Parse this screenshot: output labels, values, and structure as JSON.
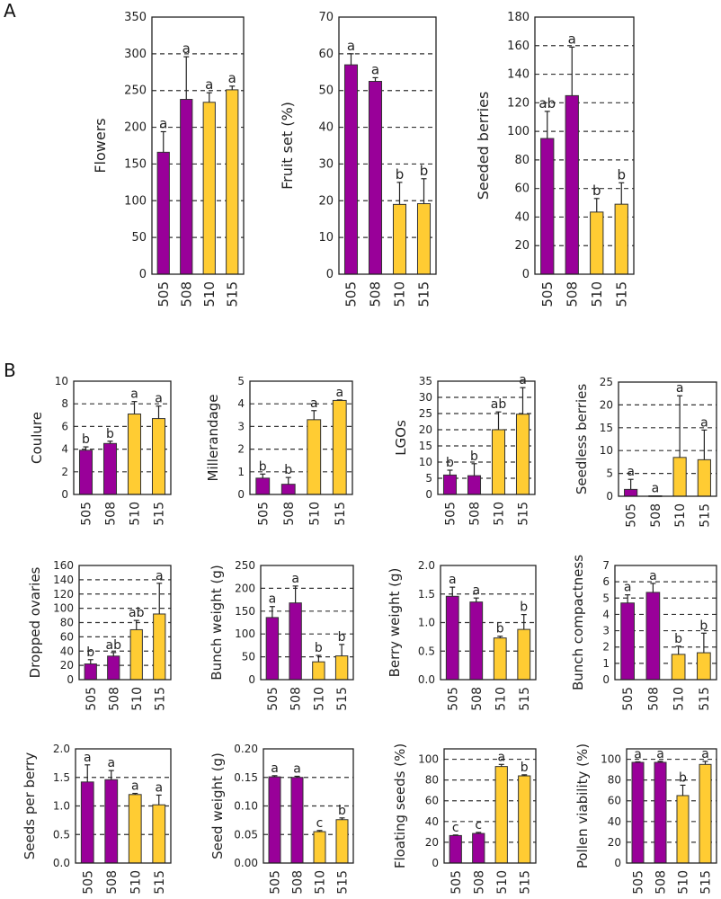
{
  "figure": {
    "panel_labels": [
      "A",
      "B"
    ],
    "colors": {
      "group_purple": "#990099",
      "group_yellow": "#FFCC33",
      "outline": "#333333",
      "grid": "#333333"
    }
  },
  "chart_data": [
    {
      "id": "flowers",
      "panel": "A",
      "type": "bar",
      "ylabel": "Flowers",
      "categories": [
        "505",
        "508",
        "510",
        "515"
      ],
      "values": [
        166,
        238,
        234,
        251
      ],
      "error_upper": [
        194,
        296,
        247,
        256
      ],
      "letters": [
        "a",
        "a",
        "a",
        "a"
      ],
      "ylim": [
        0,
        350
      ],
      "yticks": [
        "0",
        "50",
        "100",
        "150",
        "200",
        "250",
        "300",
        "350"
      ],
      "tick_values": [
        0,
        50,
        100,
        150,
        200,
        250,
        300,
        350
      ],
      "grid_values": [
        50,
        100,
        150,
        200,
        250,
        300
      ],
      "grid": "dashed horizontal",
      "bar_colors": [
        "purple",
        "purple",
        "yellow",
        "yellow"
      ]
    },
    {
      "id": "fruit-set",
      "panel": "A",
      "type": "bar",
      "ylabel": "Fruit set  (%)",
      "categories": [
        "505",
        "508",
        "510",
        "515"
      ],
      "values": [
        57,
        52.5,
        19,
        19.2
      ],
      "error_upper": [
        60,
        53.5,
        25,
        26
      ],
      "letters": [
        "a",
        "a",
        "b",
        "b"
      ],
      "ylim": [
        0,
        70
      ],
      "yticks": [
        "0",
        "10",
        "20",
        "30",
        "40",
        "50",
        "60",
        "70"
      ],
      "tick_values": [
        0,
        10,
        20,
        30,
        40,
        50,
        60,
        70
      ],
      "grid_values": [
        10,
        20,
        30,
        40,
        50,
        60
      ],
      "grid": "dashed horizontal",
      "bar_colors": [
        "purple",
        "purple",
        "yellow",
        "yellow"
      ]
    },
    {
      "id": "seeded-berries",
      "panel": "A",
      "type": "bar",
      "ylabel": "Seeded berries",
      "categories": [
        "505",
        "508",
        "510",
        "515"
      ],
      "values": [
        95,
        125,
        43.5,
        49
      ],
      "error_upper": [
        114,
        159,
        53,
        64
      ],
      "letters": [
        "ab",
        "a",
        "b",
        "b"
      ],
      "ylim": [
        0,
        180
      ],
      "yticks": [
        "0",
        "20",
        "40",
        "60",
        "80",
        "100",
        "120",
        "140",
        "160",
        "180"
      ],
      "tick_values": [
        0,
        20,
        40,
        60,
        80,
        100,
        120,
        140,
        160,
        180
      ],
      "grid_values": [
        20,
        40,
        60,
        80,
        100,
        120,
        140,
        160
      ],
      "grid": "dashed horizontal",
      "bar_colors": [
        "purple",
        "purple",
        "yellow",
        "yellow"
      ]
    },
    {
      "id": "coulure",
      "panel": "B",
      "type": "bar",
      "ylabel": "Coulure",
      "categories": [
        "505",
        "508",
        "510",
        "515"
      ],
      "values": [
        3.9,
        4.5,
        7.1,
        6.7
      ],
      "error_upper": [
        4.2,
        4.7,
        8.2,
        7.8
      ],
      "letters": [
        "b",
        "b",
        "a",
        "a"
      ],
      "ylim": [
        0,
        10
      ],
      "yticks": [
        "0",
        "2",
        "4",
        "6",
        "8",
        "10"
      ],
      "tick_values": [
        0,
        2,
        4,
        6,
        8,
        10
      ],
      "grid_values": [
        2,
        4,
        6,
        8
      ],
      "grid": "dashed horizontal",
      "bar_colors": [
        "purple",
        "purple",
        "yellow",
        "yellow"
      ]
    },
    {
      "id": "millerandage",
      "panel": "B",
      "type": "bar",
      "ylabel": "Millerandage",
      "categories": [
        "505",
        "508",
        "510",
        "515"
      ],
      "values": [
        0.72,
        0.45,
        3.3,
        4.15
      ],
      "error_upper": [
        0.9,
        0.75,
        3.7,
        4.17
      ],
      "letters": [
        "b",
        "b",
        "a",
        "a"
      ],
      "ylim": [
        0,
        5
      ],
      "yticks": [
        "0",
        "1",
        "2",
        "3",
        "4",
        "5"
      ],
      "tick_values": [
        0,
        1,
        2,
        3,
        4,
        5
      ],
      "grid_values": [
        1,
        2,
        3,
        4
      ],
      "grid": "dashed horizontal",
      "bar_colors": [
        "purple",
        "purple",
        "yellow",
        "yellow"
      ]
    },
    {
      "id": "lgos",
      "panel": "B",
      "type": "bar",
      "ylabel": "LGOs",
      "categories": [
        "505",
        "508",
        "510",
        "515"
      ],
      "values": [
        6,
        5.8,
        20,
        24.8
      ],
      "error_upper": [
        7.5,
        9.5,
        25.5,
        33
      ],
      "letters": [
        "b",
        "b",
        "ab",
        "a"
      ],
      "ylim": [
        0,
        35
      ],
      "yticks": [
        "0",
        "5",
        "10",
        "15",
        "20",
        "25",
        "30",
        "35"
      ],
      "tick_values": [
        0,
        5,
        10,
        15,
        20,
        25,
        30,
        35
      ],
      "grid_values": [
        5,
        10,
        15,
        20,
        25,
        30
      ],
      "grid": "dashed horizontal",
      "bar_colors": [
        "purple",
        "purple",
        "yellow",
        "yellow"
      ]
    },
    {
      "id": "seedless-berries",
      "panel": "B",
      "type": "bar",
      "ylabel": "Seedless berries",
      "categories": [
        "505",
        "508",
        "510",
        "515"
      ],
      "values": [
        1.5,
        0.1,
        8.5,
        8
      ],
      "error_upper": [
        3.7,
        0.1,
        22,
        14.5
      ],
      "letters": [
        "a",
        "a",
        "a",
        "a"
      ],
      "ylim": [
        0,
        25
      ],
      "yticks": [
        "0",
        "5",
        "10",
        "15",
        "20",
        "25"
      ],
      "tick_values": [
        0,
        5,
        10,
        15,
        20,
        25
      ],
      "grid_values": [
        5,
        10,
        15,
        20
      ],
      "grid": "dashed horizontal",
      "bar_colors": [
        "purple",
        "purple",
        "yellow",
        "yellow"
      ]
    },
    {
      "id": "dropped-ovaries",
      "panel": "B",
      "type": "bar",
      "ylabel": "Dropped ovaries",
      "categories": [
        "505",
        "508",
        "510",
        "515"
      ],
      "values": [
        22,
        33,
        70,
        92
      ],
      "error_upper": [
        28,
        38,
        83,
        135
      ],
      "letters": [
        "b",
        "ab",
        "ab",
        "a"
      ],
      "ylim": [
        0,
        160
      ],
      "yticks": [
        "0",
        "20",
        "40",
        "60",
        "80",
        "100",
        "120",
        "140",
        "160"
      ],
      "tick_values": [
        0,
        20,
        40,
        60,
        80,
        100,
        120,
        140,
        160
      ],
      "grid_values": [
        20,
        40,
        60,
        80,
        100,
        120,
        140
      ],
      "grid": "dashed horizontal",
      "bar_colors": [
        "purple",
        "purple",
        "yellow",
        "yellow"
      ]
    },
    {
      "id": "bunch-weight",
      "panel": "B",
      "type": "bar",
      "ylabel": "Bunch weight (g)",
      "categories": [
        "505",
        "508",
        "510",
        "515"
      ],
      "values": [
        136,
        168,
        39,
        52
      ],
      "error_upper": [
        160,
        205,
        53,
        77
      ],
      "letters": [
        "a",
        "a",
        "b",
        "b"
      ],
      "ylim": [
        0,
        250
      ],
      "yticks": [
        "0",
        "50",
        "100",
        "150",
        "200",
        "250"
      ],
      "tick_values": [
        0,
        50,
        100,
        150,
        200,
        250
      ],
      "grid_values": [
        50,
        100,
        150,
        200
      ],
      "grid": "dashed horizontal",
      "bar_colors": [
        "purple",
        "purple",
        "yellow",
        "yellow"
      ]
    },
    {
      "id": "berry-weight",
      "panel": "B",
      "type": "bar",
      "ylabel": "Berry weight (g)",
      "categories": [
        "505",
        "508",
        "510",
        "515"
      ],
      "values": [
        1.46,
        1.36,
        0.73,
        0.88
      ],
      "error_upper": [
        1.62,
        1.43,
        0.76,
        1.14
      ],
      "letters": [
        "a",
        "a",
        "b",
        "b"
      ],
      "ylim": [
        0,
        2.0
      ],
      "yticks": [
        "0.0",
        "0.5",
        "1.0",
        "1.5",
        "2.0"
      ],
      "tick_values": [
        0,
        0.5,
        1.0,
        1.5,
        2.0
      ],
      "grid_values": [
        0.5,
        1.0,
        1.5
      ],
      "grid": "dashed horizontal",
      "bar_colors": [
        "purple",
        "purple",
        "yellow",
        "yellow"
      ]
    },
    {
      "id": "bunch-compactness",
      "panel": "B",
      "type": "bar",
      "ylabel": "Bunch compactness",
      "categories": [
        "505",
        "508",
        "510",
        "515"
      ],
      "values": [
        4.7,
        5.35,
        1.55,
        1.65
      ],
      "error_upper": [
        5.2,
        5.9,
        2.05,
        2.85
      ],
      "letters": [
        "a",
        "a",
        "b",
        "b"
      ],
      "ylim": [
        0,
        7
      ],
      "yticks": [
        "0",
        "1",
        "2",
        "3",
        "4",
        "5",
        "6",
        "7"
      ],
      "tick_values": [
        0,
        1,
        2,
        3,
        4,
        5,
        6,
        7
      ],
      "grid_values": [
        1,
        2,
        3,
        4,
        5,
        6
      ],
      "grid": "dashed horizontal",
      "bar_colors": [
        "purple",
        "purple",
        "yellow",
        "yellow"
      ]
    },
    {
      "id": "seeds-per-berry",
      "panel": "B",
      "type": "bar",
      "ylabel": "Seeds per berry",
      "categories": [
        "505",
        "508",
        "510",
        "515"
      ],
      "values": [
        1.42,
        1.46,
        1.2,
        1.02
      ],
      "error_upper": [
        1.72,
        1.62,
        1.22,
        1.19
      ],
      "letters": [
        "a",
        "a",
        "a",
        "a"
      ],
      "ylim": [
        0,
        2.0
      ],
      "yticks": [
        "0.0",
        "0.5",
        "1.0",
        "1.5",
        "2.0"
      ],
      "tick_values": [
        0,
        0.5,
        1.0,
        1.5,
        2.0
      ],
      "grid_values": [
        0.5,
        1.0,
        1.5
      ],
      "grid": "dashed horizontal",
      "bar_colors": [
        "purple",
        "purple",
        "yellow",
        "yellow"
      ]
    },
    {
      "id": "seed-weight",
      "panel": "B",
      "type": "bar",
      "ylabel": "Seed weight (g)",
      "categories": [
        "505",
        "508",
        "510",
        "515"
      ],
      "values": [
        0.151,
        0.15,
        0.055,
        0.076
      ],
      "error_upper": [
        0.153,
        0.152,
        0.057,
        0.079
      ],
      "letters": [
        "a",
        "a",
        "c",
        "b"
      ],
      "ylim": [
        0,
        0.2
      ],
      "yticks": [
        "0.00",
        "0.05",
        "0.10",
        "0.15",
        "0.20"
      ],
      "tick_values": [
        0,
        0.05,
        0.1,
        0.15,
        0.2
      ],
      "grid_values": [
        0.05,
        0.1,
        0.15
      ],
      "grid": "dashed horizontal",
      "bar_colors": [
        "purple",
        "purple",
        "yellow",
        "yellow"
      ]
    },
    {
      "id": "floating-seeds",
      "panel": "B",
      "type": "bar",
      "ylabel": "Floating seeds (%)",
      "categories": [
        "505",
        "508",
        "510",
        "515"
      ],
      "values": [
        26.5,
        28.5,
        93,
        84
      ],
      "error_upper": [
        27,
        29.5,
        95,
        85
      ],
      "letters": [
        "c",
        "c",
        "a",
        "b"
      ],
      "ylim": [
        0,
        110
      ],
      "yticks": [
        "0",
        "20",
        "40",
        "60",
        "80",
        "100"
      ],
      "tick_values": [
        0,
        20,
        40,
        60,
        80,
        100
      ],
      "grid_values": [
        20,
        40,
        60,
        80,
        100
      ],
      "grid": "dashed horizontal",
      "bar_colors": [
        "purple",
        "purple",
        "yellow",
        "yellow"
      ]
    },
    {
      "id": "pollen-viability",
      "panel": "B",
      "type": "bar",
      "ylabel": "Pollen viability (%)",
      "categories": [
        "505",
        "508",
        "510",
        "515"
      ],
      "values": [
        97,
        97,
        65,
        95
      ],
      "error_upper": [
        97.5,
        98,
        75,
        98
      ],
      "letters": [
        "a",
        "a",
        "b",
        "a"
      ],
      "ylim": [
        0,
        110
      ],
      "yticks": [
        "0",
        "20",
        "40",
        "60",
        "80",
        "100"
      ],
      "tick_values": [
        0,
        20,
        40,
        60,
        80,
        100
      ],
      "grid_values": [
        20,
        40,
        60,
        80,
        100
      ],
      "grid": "dashed horizontal",
      "bar_colors": [
        "purple",
        "purple",
        "yellow",
        "yellow"
      ]
    }
  ]
}
